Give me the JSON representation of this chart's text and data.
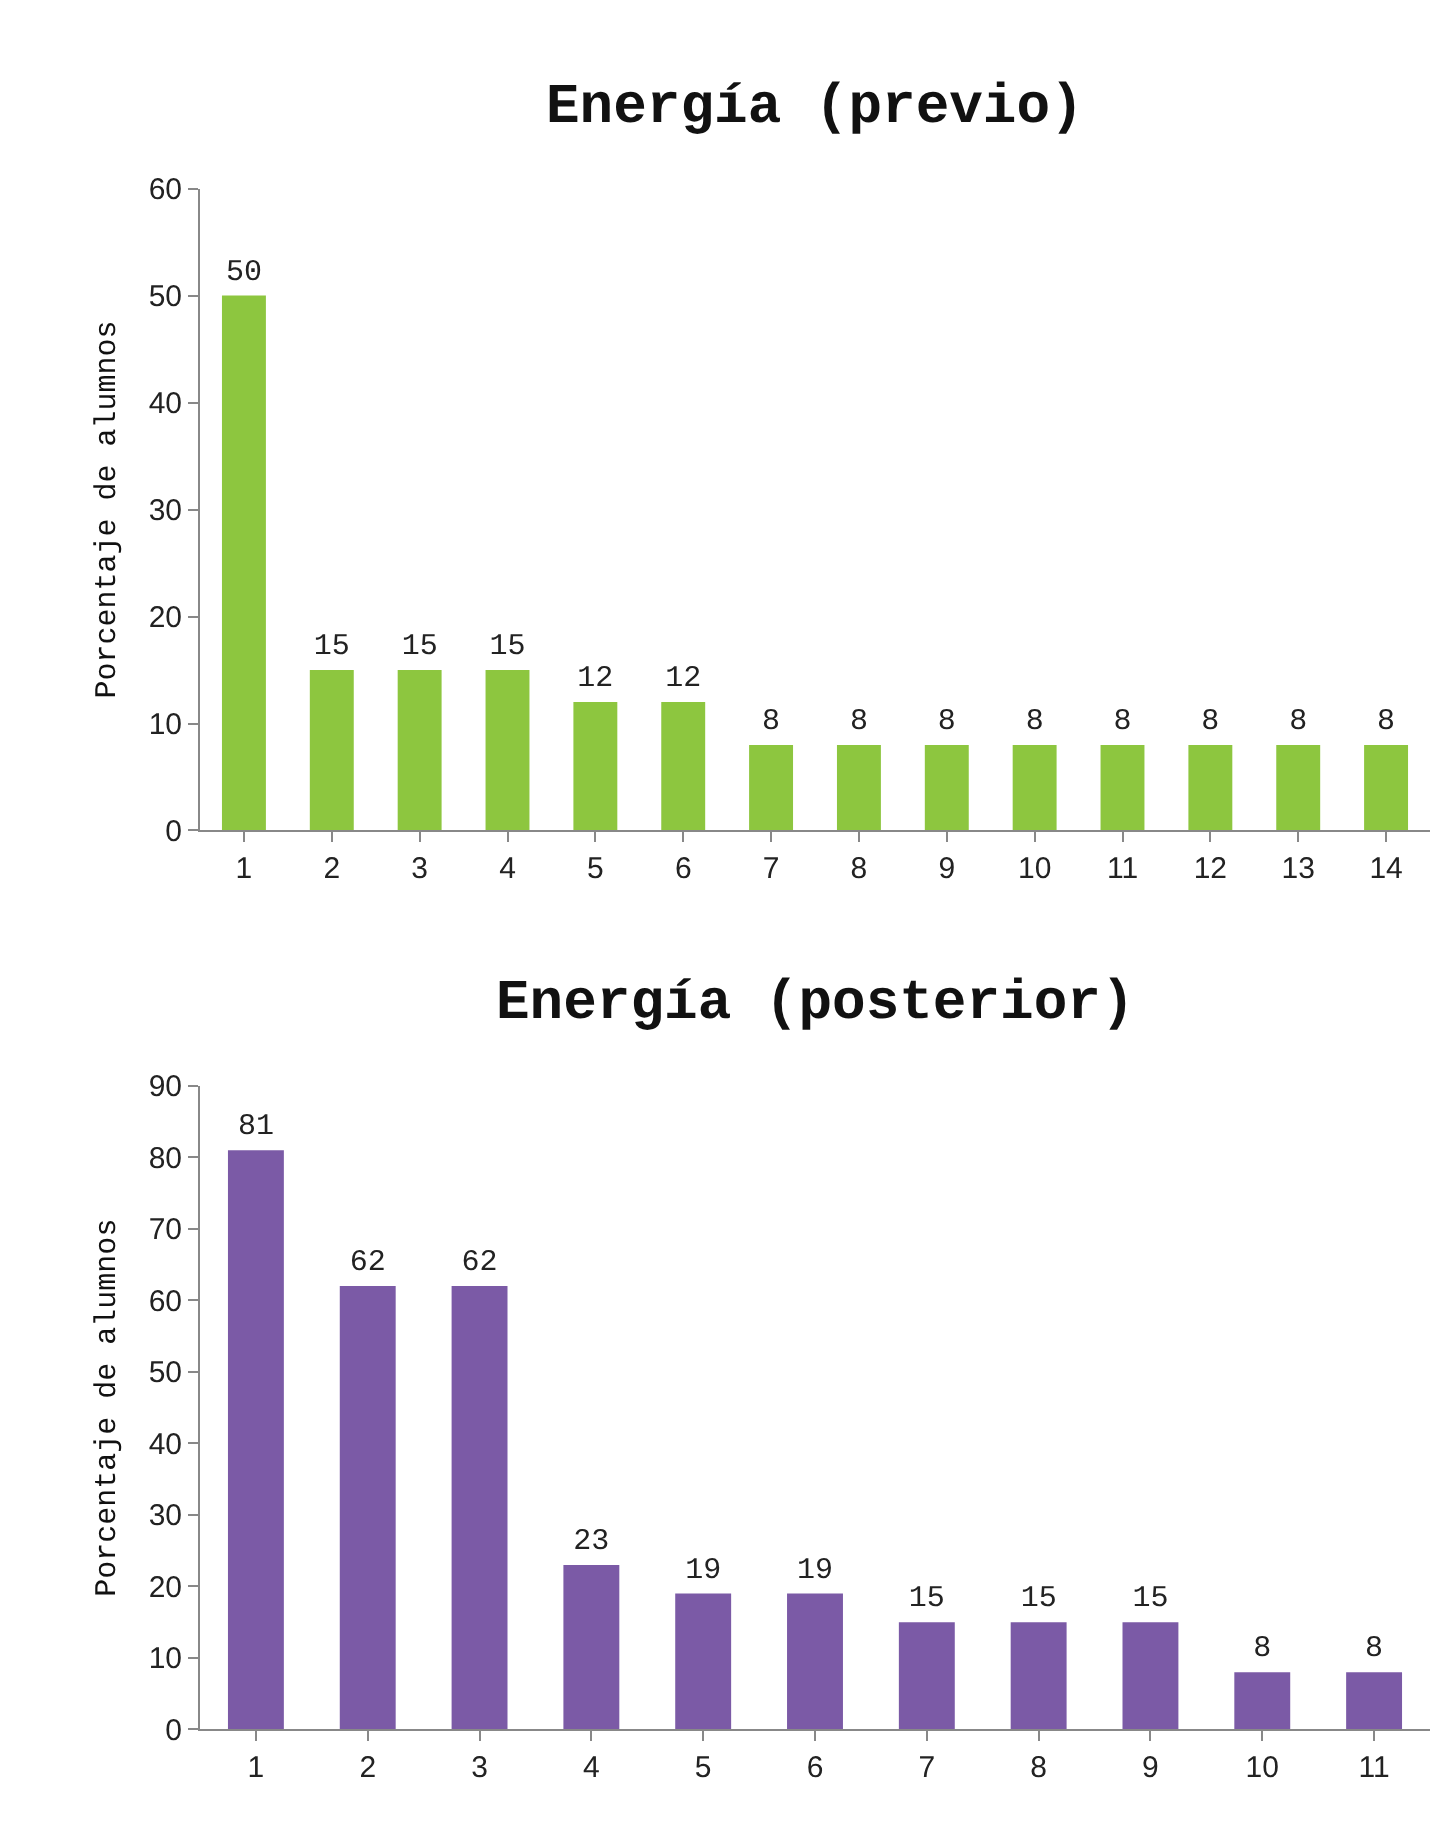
{
  "chart_data": [
    {
      "type": "bar",
      "title": "Energía (previo)",
      "ylabel": "Porcentaje de alumnos",
      "categories": [
        "1",
        "2",
        "3",
        "4",
        "5",
        "6",
        "7",
        "8",
        "9",
        "10",
        "11",
        "12",
        "13",
        "14"
      ],
      "values": [
        50,
        15,
        15,
        15,
        12,
        12,
        8,
        8,
        8,
        8,
        8,
        8,
        8,
        8
      ],
      "color": "#8dc63f",
      "ylim": [
        0,
        60
      ],
      "yticks": [
        0,
        10,
        20,
        30,
        40,
        50,
        60
      ],
      "data_labels": true
    },
    {
      "type": "bar",
      "title": "Energía (posterior)",
      "ylabel": "Porcentaje de alumnos",
      "categories": [
        "1",
        "2",
        "3",
        "4",
        "5",
        "6",
        "7",
        "8",
        "9",
        "10",
        "11"
      ],
      "values": [
        81,
        62,
        62,
        23,
        19,
        19,
        15,
        15,
        15,
        8,
        8
      ],
      "color": "#7b5aa6",
      "ylim": [
        0,
        90
      ],
      "yticks": [
        0,
        10,
        20,
        30,
        40,
        50,
        60,
        70,
        80,
        90
      ],
      "data_labels": true
    }
  ]
}
